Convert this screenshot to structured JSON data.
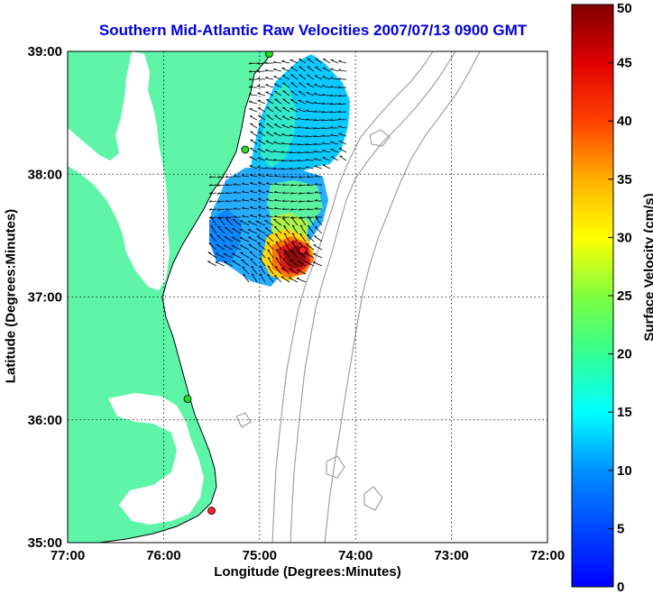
{
  "title": "Southern Mid-Atlantic Raw Velocities 2007/07/13 0900 GMT",
  "xlabel": "Longitude (Degrees:Minutes)",
  "ylabel": "Latitude (Degrees:Minutes)",
  "colorbar_label": "Surface Velocity (cm/s)",
  "colors": {
    "land": "#5ff5a8",
    "water": "#ffffff",
    "bathymetry": "#9a9a9a",
    "grid": "#000000"
  },
  "chart_data": {
    "type": "map",
    "x_ticks": [
      "77:00",
      "76:00",
      "75:00",
      "74:00",
      "73:00",
      "72:00"
    ],
    "y_ticks": [
      "39:00",
      "38:00",
      "37:00",
      "36:00",
      "35:00"
    ],
    "xlim": [
      -77,
      -72
    ],
    "ylim": [
      35,
      39
    ],
    "grid": true,
    "colorbar": {
      "min": 0,
      "max": 50,
      "ticks": [
        "50",
        "45",
        "40",
        "35",
        "30",
        "25",
        "20",
        "15",
        "10",
        "5",
        "0"
      ]
    },
    "stations": [
      {
        "lon": -74.9,
        "lat": 38.98,
        "color": "#22dd22"
      },
      {
        "lon": -75.15,
        "lat": 38.2,
        "color": "#22dd22"
      },
      {
        "lon": -75.75,
        "lat": 36.17,
        "color": "#22dd22"
      },
      {
        "lon": -75.5,
        "lat": 35.26,
        "color": "#ff2222"
      },
      {
        "lon": -74.55,
        "lat": 37.38,
        "color": "#ff2222"
      }
    ]
  }
}
